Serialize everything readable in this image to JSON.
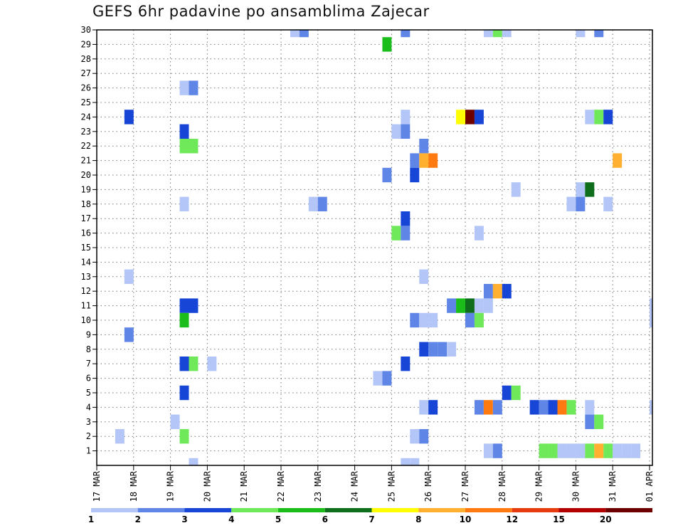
{
  "chart_data": {
    "type": "heatmap",
    "title": "GEFS 6hr padavine po ansamblima Zajecar",
    "y_ticks": [
      "1",
      "2",
      "3",
      "4",
      "5",
      "6",
      "7",
      "8",
      "9",
      "10",
      "11",
      "12",
      "13",
      "14",
      "15",
      "16",
      "17",
      "18",
      "19",
      "20",
      "21",
      "22",
      "23",
      "24",
      "25",
      "26",
      "27",
      "28",
      "29",
      "30"
    ],
    "x_ticks": [
      "17 MAR",
      "18 MAR",
      "19 MAR",
      "20 MAR",
      "21 MAR",
      "22 MAR",
      "23 MAR",
      "24 MAR",
      "25 MAR",
      "26 MAR",
      "27 MAR",
      "28 MAR",
      "29 MAR",
      "30 MAR",
      "31 MAR",
      "01 APR"
    ],
    "grid": true,
    "legend": "bottom colorbar",
    "colorbar": {
      "labels": [
        "1",
        "2",
        "3",
        "4",
        "5",
        "6",
        "7",
        "8",
        "10",
        "12",
        "15",
        "20"
      ],
      "colors": [
        "#b3c6f7",
        "#5f86e6",
        "#1745d6",
        "#6fe85a",
        "#1bbd1b",
        "#0e6e1b",
        "#ffff00",
        "#ffb030",
        "#ff7a10",
        "#e63a10",
        "#b30000",
        "#6e0000"
      ]
    },
    "cells": [
      [
        30,
        22.25,
        1
      ],
      [
        30,
        22.5,
        2
      ],
      [
        30,
        25.25,
        2
      ],
      [
        30,
        27.5,
        1
      ],
      [
        30,
        27.75,
        4
      ],
      [
        30,
        28,
        1
      ],
      [
        30,
        30,
        1
      ],
      [
        30,
        30.5,
        2
      ],
      [
        29,
        24.75,
        5
      ],
      [
        26,
        19.25,
        1
      ],
      [
        26,
        19.5,
        2
      ],
      [
        24,
        17.75,
        3
      ],
      [
        24,
        25.25,
        1
      ],
      [
        24,
        26.75,
        7
      ],
      [
        24,
        27,
        12
      ],
      [
        24,
        27.25,
        3
      ],
      [
        24,
        30.25,
        1
      ],
      [
        24,
        30.5,
        4
      ],
      [
        24,
        30.75,
        3
      ],
      [
        23,
        19.25,
        3
      ],
      [
        23,
        25,
        1
      ],
      [
        23,
        25.25,
        2
      ],
      [
        22,
        19.25,
        4
      ],
      [
        22,
        19.5,
        4
      ],
      [
        22,
        25.75,
        2
      ],
      [
        21,
        25.5,
        2
      ],
      [
        21,
        25.75,
        8
      ],
      [
        21,
        26,
        9
      ],
      [
        21,
        31,
        8
      ],
      [
        20,
        24.75,
        2
      ],
      [
        20,
        25.5,
        3
      ],
      [
        19,
        28.25,
        1
      ],
      [
        19,
        30,
        1
      ],
      [
        19,
        30.25,
        6
      ],
      [
        18,
        19.25,
        1
      ],
      [
        18,
        22.75,
        1
      ],
      [
        18,
        23,
        2
      ],
      [
        18,
        29.75,
        1
      ],
      [
        18,
        30,
        2
      ],
      [
        18,
        30.75,
        1
      ],
      [
        18,
        32.25,
        1
      ],
      [
        18,
        32.5,
        1
      ],
      [
        17,
        25.25,
        3
      ],
      [
        16,
        25,
        4
      ],
      [
        16,
        25.25,
        2
      ],
      [
        16,
        27.25,
        1
      ],
      [
        14,
        33.75,
        2
      ],
      [
        13,
        17.75,
        1
      ],
      [
        13,
        25.75,
        1
      ],
      [
        12,
        27.5,
        2
      ],
      [
        12,
        27.75,
        8
      ],
      [
        12,
        28,
        3
      ],
      [
        12,
        32.25,
        1
      ],
      [
        12,
        32.5,
        1
      ],
      [
        11,
        19.25,
        3
      ],
      [
        11,
        19.5,
        3
      ],
      [
        11,
        26.5,
        2
      ],
      [
        11,
        26.75,
        5
      ],
      [
        11,
        27,
        6
      ],
      [
        11,
        27.25,
        1
      ],
      [
        11,
        27.5,
        1
      ],
      [
        11,
        32,
        1
      ],
      [
        11,
        32.25,
        1
      ],
      [
        10,
        19.25,
        5
      ],
      [
        10,
        25.5,
        2
      ],
      [
        10,
        25.75,
        1
      ],
      [
        10,
        26,
        1
      ],
      [
        10,
        27,
        2
      ],
      [
        10,
        27.25,
        4
      ],
      [
        10,
        32,
        1
      ],
      [
        10,
        32.25,
        2
      ],
      [
        10,
        32.5,
        1
      ],
      [
        10,
        33,
        1
      ],
      [
        9,
        17.75,
        2
      ],
      [
        8,
        25.75,
        3
      ],
      [
        8,
        26,
        2
      ],
      [
        8,
        26.25,
        2
      ],
      [
        8,
        26.5,
        1
      ],
      [
        7,
        19.25,
        3
      ],
      [
        7,
        19.5,
        4
      ],
      [
        7,
        20,
        1
      ],
      [
        7,
        25.25,
        3
      ],
      [
        7,
        33,
        3
      ],
      [
        7,
        33.75,
        3
      ],
      [
        6,
        24.5,
        1
      ],
      [
        6,
        24.75,
        2
      ],
      [
        5,
        19.25,
        3
      ],
      [
        5,
        28,
        3
      ],
      [
        5,
        28.25,
        4
      ],
      [
        4,
        25.75,
        1
      ],
      [
        4,
        26,
        3
      ],
      [
        4,
        27.25,
        2
      ],
      [
        4,
        27.5,
        9
      ],
      [
        4,
        27.75,
        2
      ],
      [
        4,
        28.75,
        3
      ],
      [
        4,
        29,
        2
      ],
      [
        4,
        29.25,
        3
      ],
      [
        4,
        29.5,
        9
      ],
      [
        4,
        29.75,
        4
      ],
      [
        4,
        30.25,
        1
      ],
      [
        4,
        32,
        1
      ],
      [
        4,
        32.25,
        1
      ],
      [
        3,
        19,
        1
      ],
      [
        3,
        30.25,
        2
      ],
      [
        3,
        30.5,
        4
      ],
      [
        2,
        17.5,
        1
      ],
      [
        2,
        19.25,
        4
      ],
      [
        2,
        25.5,
        1
      ],
      [
        2,
        25.75,
        2
      ],
      [
        1,
        27.5,
        1
      ],
      [
        1,
        27.75,
        2
      ],
      [
        1,
        29,
        4
      ],
      [
        1,
        29.25,
        4
      ],
      [
        1,
        29.5,
        1
      ],
      [
        1,
        29.75,
        1
      ],
      [
        1,
        30,
        1
      ],
      [
        1,
        30.25,
        4
      ],
      [
        1,
        30.5,
        8
      ],
      [
        1,
        30.75,
        4
      ],
      [
        1,
        31,
        1
      ],
      [
        1,
        31.25,
        1
      ],
      [
        1,
        31.5,
        1
      ],
      [
        0,
        19.5,
        1
      ],
      [
        0,
        25.25,
        1
      ],
      [
        0,
        25.5,
        1
      ]
    ]
  }
}
